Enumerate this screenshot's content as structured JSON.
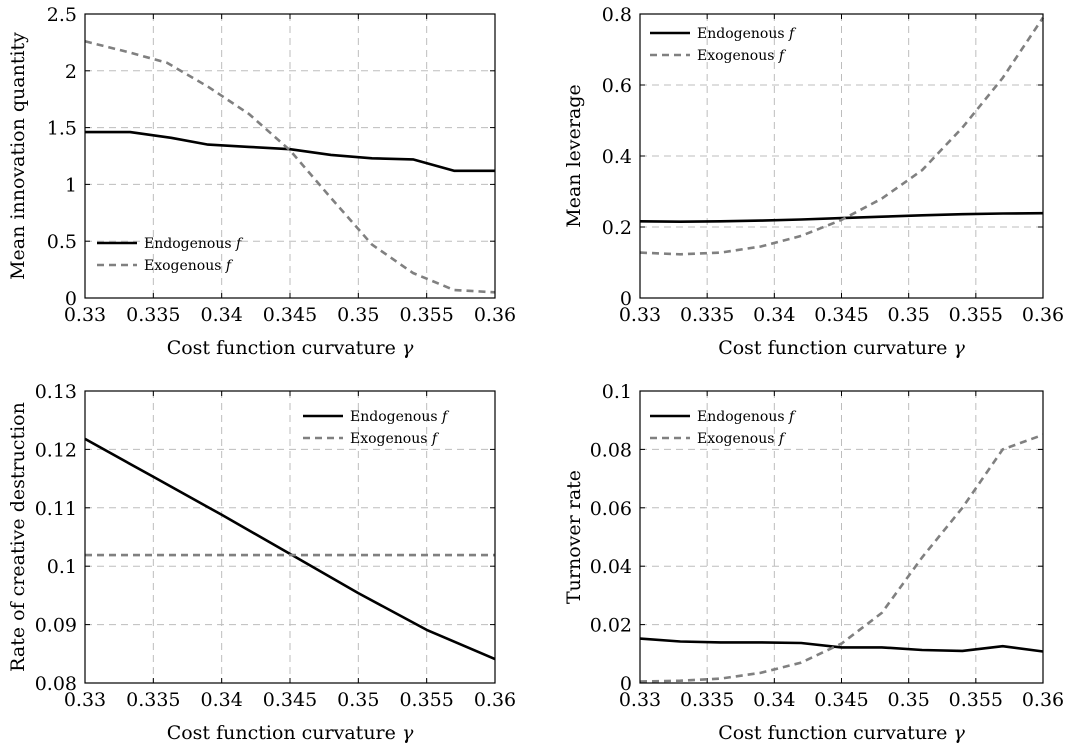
{
  "chart_data": [
    {
      "type": "line",
      "title": "",
      "xlabel": "Cost function curvature γ",
      "ylabel": "Mean innovation quantity",
      "xlim": [
        0.33,
        0.36
      ],
      "ylim": [
        0,
        2.5
      ],
      "xticks": [
        "0.33",
        "0.335",
        "0.34",
        "0.345",
        "0.35",
        "0.355",
        "0.36"
      ],
      "yticks": [
        "0",
        "0.5",
        "1",
        "1.5",
        "2",
        "2.5"
      ],
      "grid": true,
      "legend_position": "bottom-left",
      "series": [
        {
          "name": "Endogenous f",
          "style": "solid",
          "color": "#000000",
          "x": [
            0.33,
            0.3333,
            0.3363,
            0.339,
            0.342,
            0.345,
            0.348,
            0.351,
            0.354,
            0.357,
            0.36
          ],
          "y": [
            1.46,
            1.46,
            1.41,
            1.35,
            1.33,
            1.31,
            1.26,
            1.23,
            1.22,
            1.12,
            1.12
          ]
        },
        {
          "name": "Exogenous f",
          "style": "dashed",
          "color": "#808080",
          "x": [
            0.33,
            0.3333,
            0.336,
            0.339,
            0.342,
            0.345,
            0.348,
            0.351,
            0.354,
            0.357,
            0.36
          ],
          "y": [
            2.26,
            2.16,
            2.07,
            1.86,
            1.62,
            1.3,
            0.88,
            0.47,
            0.22,
            0.07,
            0.05
          ]
        }
      ]
    },
    {
      "type": "line",
      "title": "",
      "xlabel": "Cost function curvature γ",
      "ylabel": "Mean leverage",
      "xlim": [
        0.33,
        0.36
      ],
      "ylim": [
        0,
        0.8
      ],
      "xticks": [
        "0.33",
        "0.335",
        "0.34",
        "0.345",
        "0.35",
        "0.355",
        "0.36"
      ],
      "yticks": [
        "0",
        "0.2",
        "0.4",
        "0.6",
        "0.8"
      ],
      "grid": true,
      "legend_position": "top-left",
      "series": [
        {
          "name": "Endogenous f",
          "style": "solid",
          "color": "#000000",
          "x": [
            0.33,
            0.333,
            0.336,
            0.339,
            0.342,
            0.345,
            0.348,
            0.351,
            0.354,
            0.357,
            0.36
          ],
          "y": [
            0.216,
            0.215,
            0.216,
            0.218,
            0.221,
            0.225,
            0.229,
            0.233,
            0.236,
            0.238,
            0.239
          ]
        },
        {
          "name": "Exogenous f",
          "style": "dashed",
          "color": "#808080",
          "x": [
            0.33,
            0.333,
            0.336,
            0.339,
            0.342,
            0.345,
            0.348,
            0.351,
            0.354,
            0.357,
            0.36
          ],
          "y": [
            0.128,
            0.123,
            0.128,
            0.145,
            0.175,
            0.22,
            0.28,
            0.36,
            0.48,
            0.62,
            0.79
          ]
        }
      ]
    },
    {
      "type": "line",
      "title": "",
      "xlabel": "Cost function curvature γ",
      "ylabel": "Rate of creative destruction",
      "xlim": [
        0.33,
        0.36
      ],
      "ylim": [
        0.08,
        0.13
      ],
      "xticks": [
        "0.33",
        "0.335",
        "0.34",
        "0.345",
        "0.35",
        "0.355",
        "0.36"
      ],
      "yticks": [
        "0.08",
        "0.09",
        "0.1",
        "0.11",
        "0.12",
        "0.13"
      ],
      "grid": true,
      "legend_position": "top-right",
      "series": [
        {
          "name": "Endogenous f",
          "style": "solid",
          "color": "#000000",
          "x": [
            0.33,
            0.335,
            0.34,
            0.345,
            0.35,
            0.355,
            0.36
          ],
          "y": [
            0.1218,
            0.1153,
            0.1088,
            0.1021,
            0.0954,
            0.0891,
            0.0841
          ]
        },
        {
          "name": "Exogenous f",
          "style": "dashed",
          "color": "#808080",
          "x": [
            0.33,
            0.36
          ],
          "y": [
            0.1019,
            0.1019
          ]
        }
      ]
    },
    {
      "type": "line",
      "title": "",
      "xlabel": "Cost function curvature γ",
      "ylabel": "Turnover rate",
      "xlim": [
        0.33,
        0.36
      ],
      "ylim": [
        0,
        0.1
      ],
      "xticks": [
        "0.33",
        "0.335",
        "0.34",
        "0.345",
        "0.35",
        "0.355",
        "0.36"
      ],
      "yticks": [
        "0",
        "0.02",
        "0.04",
        "0.06",
        "0.08",
        "0.1"
      ],
      "grid": true,
      "legend_position": "top-left",
      "series": [
        {
          "name": "Endogenous f",
          "style": "solid",
          "color": "#000000",
          "x": [
            0.33,
            0.333,
            0.336,
            0.339,
            0.342,
            0.345,
            0.348,
            0.351,
            0.354,
            0.357,
            0.36
          ],
          "y": [
            0.0152,
            0.0142,
            0.0139,
            0.0139,
            0.0137,
            0.0122,
            0.0122,
            0.0113,
            0.011,
            0.0126,
            0.0108
          ]
        },
        {
          "name": "Exogenous f",
          "style": "dashed",
          "color": "#808080",
          "x": [
            0.33,
            0.333,
            0.336,
            0.339,
            0.342,
            0.345,
            0.348,
            0.351,
            0.354,
            0.357,
            0.36
          ],
          "y": [
            0.0005,
            0.0008,
            0.0015,
            0.0035,
            0.007,
            0.0135,
            0.024,
            0.043,
            0.06,
            0.08,
            0.085
          ]
        }
      ]
    }
  ]
}
